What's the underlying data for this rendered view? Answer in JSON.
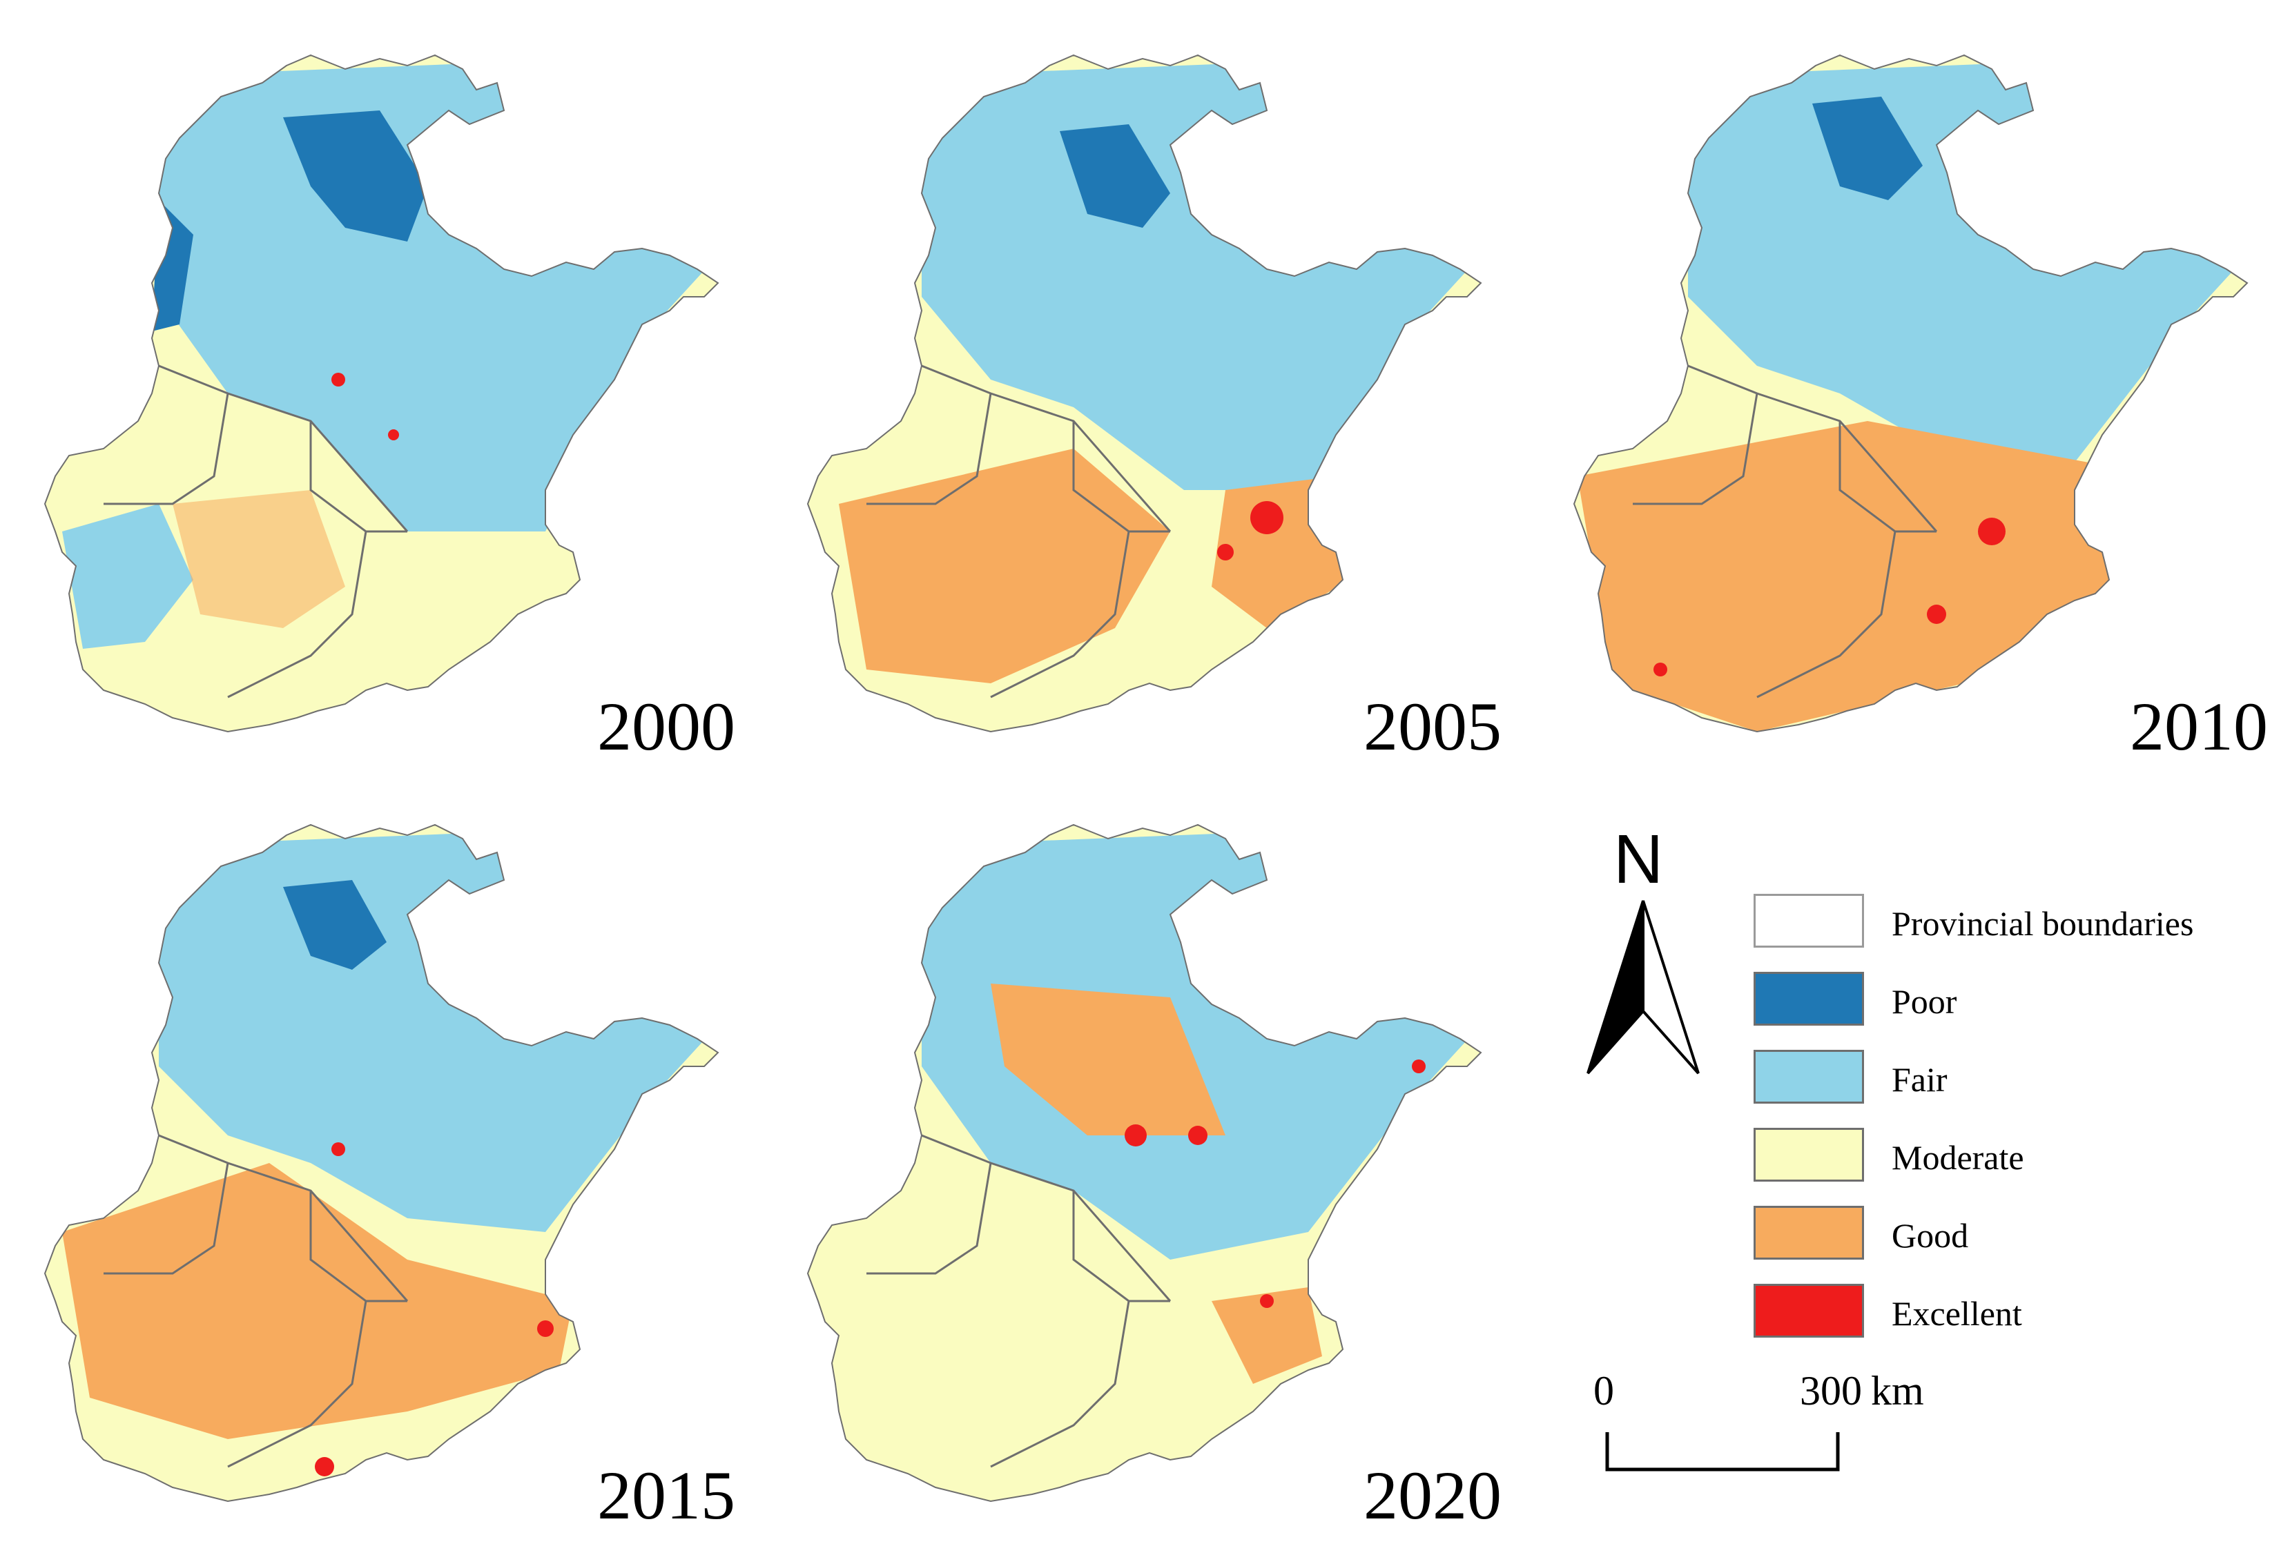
{
  "figure": {
    "panels": [
      {
        "year": "2000",
        "id": "map-2000"
      },
      {
        "year": "2005",
        "id": "map-2005"
      },
      {
        "year": "2010",
        "id": "map-2010"
      },
      {
        "year": "2015",
        "id": "map-2015"
      },
      {
        "year": "2020",
        "id": "map-2020"
      }
    ]
  },
  "north_arrow": {
    "letter": "N"
  },
  "legend": {
    "items": [
      {
        "label": "Provincial boundaries",
        "color": "#ffffff"
      },
      {
        "label": "Poor",
        "color": "#1f78b4"
      },
      {
        "label": "Fair",
        "color": "#8fd3e8"
      },
      {
        "label": "Moderate",
        "color": "#fafcc0"
      },
      {
        "label": "Good",
        "color": "#f7ab5e"
      },
      {
        "label": "Excellent",
        "color": "#ee1c1c"
      }
    ]
  },
  "scale_bar": {
    "start": "0",
    "end": "300",
    "unit": "km"
  }
}
